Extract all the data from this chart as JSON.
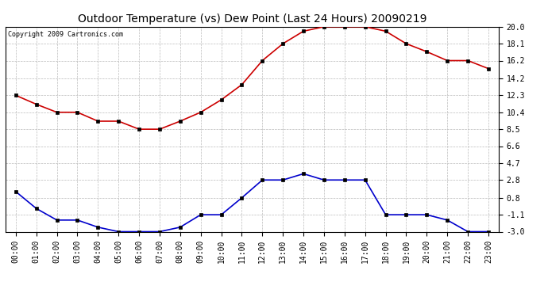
{
  "title": "Outdoor Temperature (vs) Dew Point (Last 24 Hours) 20090219",
  "copyright": "Copyright 2009 Cartronics.com",
  "hours": [
    "00:00",
    "01:00",
    "02:00",
    "03:00",
    "04:00",
    "05:00",
    "06:00",
    "07:00",
    "08:00",
    "09:00",
    "10:00",
    "11:00",
    "12:00",
    "13:00",
    "14:00",
    "15:00",
    "16:00",
    "17:00",
    "18:00",
    "19:00",
    "20:00",
    "21:00",
    "22:00",
    "23:00"
  ],
  "temp": [
    12.3,
    11.3,
    10.4,
    10.4,
    9.4,
    9.4,
    8.5,
    8.5,
    9.4,
    10.4,
    11.8,
    13.5,
    16.2,
    18.1,
    19.5,
    20.0,
    20.0,
    20.0,
    19.5,
    18.1,
    17.2,
    16.2,
    16.2,
    15.3
  ],
  "dew": [
    1.5,
    -0.4,
    -1.7,
    -1.7,
    -2.5,
    -3.0,
    -3.0,
    -3.0,
    -2.5,
    -1.1,
    -1.1,
    0.8,
    2.8,
    2.8,
    3.5,
    2.8,
    2.8,
    2.8,
    -1.1,
    -1.1,
    -1.1,
    -1.7,
    -3.0,
    -3.0
  ],
  "ylim": [
    -3.0,
    20.0
  ],
  "yticks": [
    20.0,
    18.1,
    16.2,
    14.2,
    12.3,
    10.4,
    8.5,
    6.6,
    4.7,
    2.8,
    0.8,
    -1.1,
    -3.0
  ],
  "temp_color": "#cc0000",
  "dew_color": "#0000cc",
  "bg_color": "#ffffff",
  "grid_color": "#bbbbbb",
  "title_fontsize": 10,
  "copyright_fontsize": 6,
  "tick_fontsize": 7,
  "marker": "s",
  "marker_size": 2.5,
  "linewidth": 1.2
}
